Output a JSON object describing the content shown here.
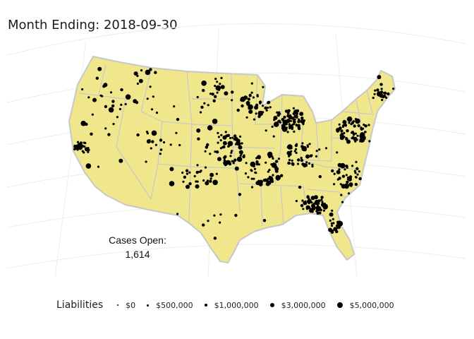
{
  "title": "Month Ending: 2018-09-30",
  "annotation": {
    "label": "Cases Open:",
    "value": "1,614"
  },
  "legend": {
    "title": "Liabilities",
    "items": [
      {
        "label": "$0"
      },
      {
        "label": "$500,000"
      },
      {
        "label": "$1,000,000"
      },
      {
        "label": "$3,000,000"
      },
      {
        "label": "$5,000,000"
      }
    ]
  },
  "colors": {
    "land": "#f0e68c",
    "border": "#c8c8c8",
    "point": "#000000",
    "graticule": "#ececec"
  }
}
